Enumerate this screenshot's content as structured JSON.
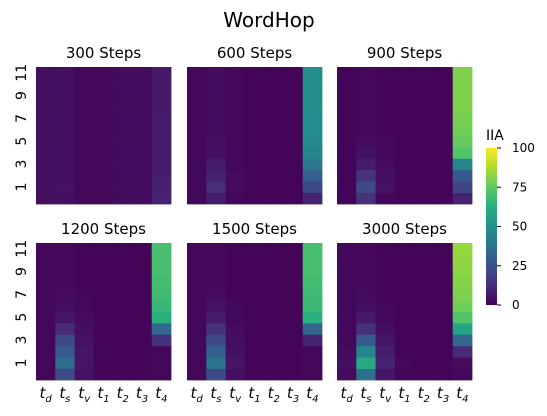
{
  "chart_data": {
    "type": "heatmap",
    "title": "WordHop",
    "colorbar": {
      "label": "IIA",
      "range": [
        0,
        100
      ],
      "ticks": [
        "0",
        "25",
        "50",
        "75",
        "100"
      ],
      "colormap": "viridis"
    },
    "x_ticks": [
      {
        "base": "t",
        "sub": "d"
      },
      {
        "base": "t",
        "sub": "s"
      },
      {
        "base": "t",
        "sub": "v"
      },
      {
        "base": "t",
        "sub": "1"
      },
      {
        "base": "t",
        "sub": "2"
      },
      {
        "base": "t",
        "sub": "3"
      },
      {
        "base": "t",
        "sub": "4"
      }
    ],
    "y_rows": [
      "0",
      "1",
      "2",
      "3",
      "4",
      "5",
      "6",
      "7",
      "8",
      "9",
      "10",
      "11"
    ],
    "y_tick_labels": [
      "1",
      "3",
      "5",
      "7",
      "9",
      "11"
    ],
    "panels": [
      {
        "title": "300 Steps",
        "values": [
          [
            4,
            4,
            2,
            2,
            3,
            3,
            10
          ],
          [
            4,
            5,
            2,
            2,
            3,
            3,
            9
          ],
          [
            4,
            4,
            2,
            2,
            3,
            3,
            8
          ],
          [
            4,
            4,
            2,
            2,
            3,
            3,
            8
          ],
          [
            4,
            4,
            2,
            2,
            3,
            3,
            8
          ],
          [
            4,
            4,
            2,
            2,
            3,
            3,
            8
          ],
          [
            4,
            4,
            2,
            2,
            3,
            3,
            8
          ],
          [
            4,
            4,
            2,
            2,
            3,
            3,
            8
          ],
          [
            4,
            4,
            2,
            2,
            3,
            3,
            7
          ],
          [
            4,
            4,
            2,
            2,
            3,
            3,
            7
          ],
          [
            4,
            4,
            2,
            2,
            3,
            3,
            7
          ],
          [
            4,
            4,
            2,
            2,
            3,
            3,
            7
          ]
        ]
      },
      {
        "title": "600 Steps",
        "values": [
          [
            2,
            8,
            2,
            1,
            1,
            1,
            10
          ],
          [
            2,
            13,
            3,
            1,
            1,
            1,
            22
          ],
          [
            2,
            10,
            3,
            1,
            1,
            1,
            30
          ],
          [
            2,
            8,
            2,
            1,
            1,
            1,
            40
          ],
          [
            2,
            5,
            2,
            1,
            1,
            1,
            45
          ],
          [
            2,
            4,
            2,
            1,
            1,
            1,
            47
          ],
          [
            2,
            3,
            2,
            1,
            1,
            1,
            48
          ],
          [
            2,
            3,
            2,
            1,
            1,
            1,
            48
          ],
          [
            2,
            3,
            2,
            1,
            1,
            1,
            49
          ],
          [
            2,
            3,
            2,
            1,
            1,
            1,
            49
          ],
          [
            2,
            3,
            2,
            1,
            1,
            1,
            49
          ],
          [
            2,
            3,
            2,
            1,
            1,
            1,
            49
          ]
        ]
      },
      {
        "title": "900 Steps",
        "values": [
          [
            1,
            14,
            2,
            1,
            1,
            1,
            10
          ],
          [
            1,
            22,
            5,
            1,
            1,
            1,
            20
          ],
          [
            1,
            15,
            4,
            1,
            1,
            1,
            28
          ],
          [
            1,
            8,
            3,
            1,
            1,
            1,
            45
          ],
          [
            1,
            5,
            2,
            1,
            1,
            1,
            72
          ],
          [
            1,
            3,
            2,
            1,
            1,
            1,
            76
          ],
          [
            1,
            2,
            1,
            1,
            1,
            1,
            78
          ],
          [
            1,
            2,
            1,
            1,
            1,
            1,
            79
          ],
          [
            1,
            2,
            1,
            1,
            1,
            1,
            80
          ],
          [
            1,
            2,
            1,
            1,
            1,
            1,
            80
          ],
          [
            1,
            2,
            1,
            1,
            1,
            1,
            80
          ],
          [
            1,
            2,
            1,
            1,
            1,
            1,
            80
          ]
        ]
      },
      {
        "title": "1200 Steps",
        "values": [
          [
            2,
            22,
            5,
            1,
            1,
            1,
            2
          ],
          [
            2,
            35,
            6,
            1,
            1,
            1,
            2
          ],
          [
            2,
            28,
            6,
            1,
            1,
            1,
            2
          ],
          [
            2,
            22,
            5,
            1,
            1,
            1,
            14
          ],
          [
            2,
            12,
            4,
            1,
            1,
            1,
            34
          ],
          [
            2,
            6,
            3,
            1,
            1,
            1,
            63
          ],
          [
            2,
            4,
            2,
            1,
            1,
            1,
            66
          ],
          [
            2,
            3,
            2,
            1,
            1,
            1,
            68
          ],
          [
            2,
            2,
            1,
            1,
            1,
            1,
            69
          ],
          [
            2,
            2,
            1,
            1,
            1,
            1,
            70
          ],
          [
            2,
            2,
            1,
            1,
            1,
            1,
            70
          ],
          [
            2,
            2,
            1,
            1,
            1,
            1,
            70
          ]
        ]
      },
      {
        "title": "1500 Steps",
        "values": [
          [
            2,
            22,
            4,
            1,
            1,
            1,
            2
          ],
          [
            2,
            38,
            6,
            1,
            1,
            1,
            2
          ],
          [
            2,
            30,
            5,
            1,
            1,
            1,
            2
          ],
          [
            2,
            22,
            4,
            1,
            1,
            1,
            10
          ],
          [
            2,
            14,
            3,
            1,
            1,
            1,
            32
          ],
          [
            2,
            8,
            2,
            1,
            1,
            1,
            63
          ],
          [
            2,
            5,
            2,
            1,
            1,
            1,
            67
          ],
          [
            2,
            3,
            1,
            1,
            1,
            1,
            68
          ],
          [
            2,
            2,
            1,
            1,
            1,
            1,
            69
          ],
          [
            2,
            2,
            1,
            1,
            1,
            1,
            70
          ],
          [
            2,
            2,
            1,
            1,
            1,
            1,
            70
          ],
          [
            2,
            2,
            1,
            1,
            1,
            1,
            70
          ]
        ]
      },
      {
        "title": "3000 Steps",
        "values": [
          [
            3,
            36,
            6,
            1,
            1,
            1,
            2
          ],
          [
            4,
            60,
            10,
            2,
            1,
            1,
            3
          ],
          [
            3,
            45,
            8,
            1,
            1,
            1,
            12
          ],
          [
            2,
            28,
            6,
            1,
            1,
            1,
            33
          ],
          [
            2,
            14,
            4,
            1,
            1,
            1,
            58
          ],
          [
            2,
            7,
            2,
            1,
            1,
            1,
            72
          ],
          [
            2,
            4,
            2,
            1,
            1,
            1,
            78
          ],
          [
            2,
            3,
            1,
            1,
            1,
            1,
            80
          ],
          [
            2,
            2,
            1,
            1,
            1,
            1,
            81
          ],
          [
            2,
            2,
            1,
            1,
            1,
            1,
            82
          ],
          [
            2,
            2,
            1,
            1,
            1,
            1,
            83
          ],
          [
            2,
            2,
            1,
            1,
            1,
            1,
            84
          ]
        ]
      }
    ]
  }
}
